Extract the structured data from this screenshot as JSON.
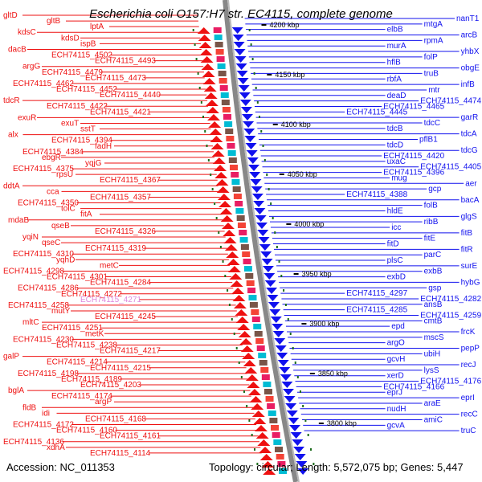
{
  "title": "Escherichia coli O157:H7 str. EC4115, complete genome",
  "footer": {
    "accession": "Accession: NC_011353",
    "summary": "Topology: circular; Length: 5,572,075 bp; Genes: 5,447"
  },
  "colors": {
    "forward": "#ee1111",
    "reverse": "#1111ee",
    "highlight": "#dd88dd",
    "backbone": "#888888",
    "tick": "#1a6b1a"
  },
  "scale_labels": [
    "4200 kbp",
    "4150 kbp",
    "4100 kbp",
    "4050 kbp",
    "4000 kbp",
    "3950 kbp",
    "3900 kbp",
    "3850 kbp",
    "3800 kbp"
  ],
  "left_labels": [
    "gltD",
    "gltB",
    "lptA",
    "kdsC",
    "kdsD",
    "ispB",
    "dacB",
    "ECH74115_4502",
    "ECH74115_4493",
    "argG",
    "ECH74115_4479",
    "ECH74115_4473",
    "ECH74115_4462",
    "ECH74115_4452",
    "ECH74115_4440",
    "tdcR",
    "ECH74115_4422",
    "ECH74115_4421",
    "exuR",
    "exuT",
    "sstT",
    "alx",
    "ECH74115_4394",
    "fadH",
    "ECH74115_4384",
    "ebgR",
    "yqjG",
    "ECH74115_4375",
    "rpsU",
    "ECH74115_4367",
    "ddtA",
    "cca",
    "ECH74115_4357",
    "ECH74115_4350",
    "tolC",
    "fitA",
    "mdaB",
    "qseB",
    "ECH74115_4326",
    "yqiN",
    "qseC",
    "ECH74115_4319",
    "ECH74115_4310",
    "yqhD",
    "metC",
    "ECH74115_4298",
    "ECH74115_4301",
    "ECH74115_4284",
    "ECH74115_4286",
    "ECH74115_4272",
    "ECH74115_4271",
    "ECH74115_4258",
    "mutY",
    "ECH74115_4245",
    "mltC",
    "ECH74115_4251",
    "metK",
    "ECH74115_4230",
    "ECH74115_4238",
    "ECH74115_4217",
    "galP",
    "ECH74115_4214",
    "ECH74115_4215",
    "ECH74115_4198",
    "ECH74115_4189",
    "ECH74115_4203",
    "bglA",
    "ECH74115_4174",
    "argP",
    "fldB",
    "idi",
    "ECH74115_4168",
    "ECH74115_4172",
    "ECH74115_4160",
    "ECH74115_4161",
    "ECH74115_4136",
    "xdhA",
    "ECH74115_4114"
  ],
  "right_labels": [
    "nanT1",
    "mtgA",
    "elbB",
    "arcB",
    "rpmA",
    "murA",
    "yhbX",
    "folP",
    "hflB",
    "obgE",
    "truB",
    "rbfA",
    "infB",
    "mtr",
    "deaD",
    "ECH74115_4474",
    "ECH74115_4465",
    "ECH74115_4445",
    "garR",
    "tdcC",
    "tdcB",
    "tdcA",
    "pflB1",
    "tdcD",
    "tdcG",
    "ECH74115_4420",
    "uxaC",
    "ECH74115_4405",
    "ECH74115_4396",
    "mug",
    "aer",
    "gcp",
    "ECH74115_4388",
    "bacA",
    "folB",
    "hldE",
    "glgS",
    "ribB",
    "icc",
    "fitB",
    "fitE",
    "fitD",
    "fitR",
    "parC",
    "plsC",
    "surE",
    "exbB",
    "exbD",
    "hybG",
    "gsp",
    "ECH74115_4297",
    "ECH74115_4282",
    "ansB",
    "ECH74115_4285",
    "ECH74115_4259",
    "cmtB",
    "epd",
    "frcK",
    "mscS",
    "argO",
    "pepP",
    "ubiH",
    "gcvH",
    "recJ",
    "lysS",
    "xerD",
    "ECH74115_4176",
    "ECH74115_4166",
    "eprJ",
    "eprI",
    "araE",
    "nudH",
    "recC",
    "amiC",
    "gcvA",
    "truC"
  ]
}
